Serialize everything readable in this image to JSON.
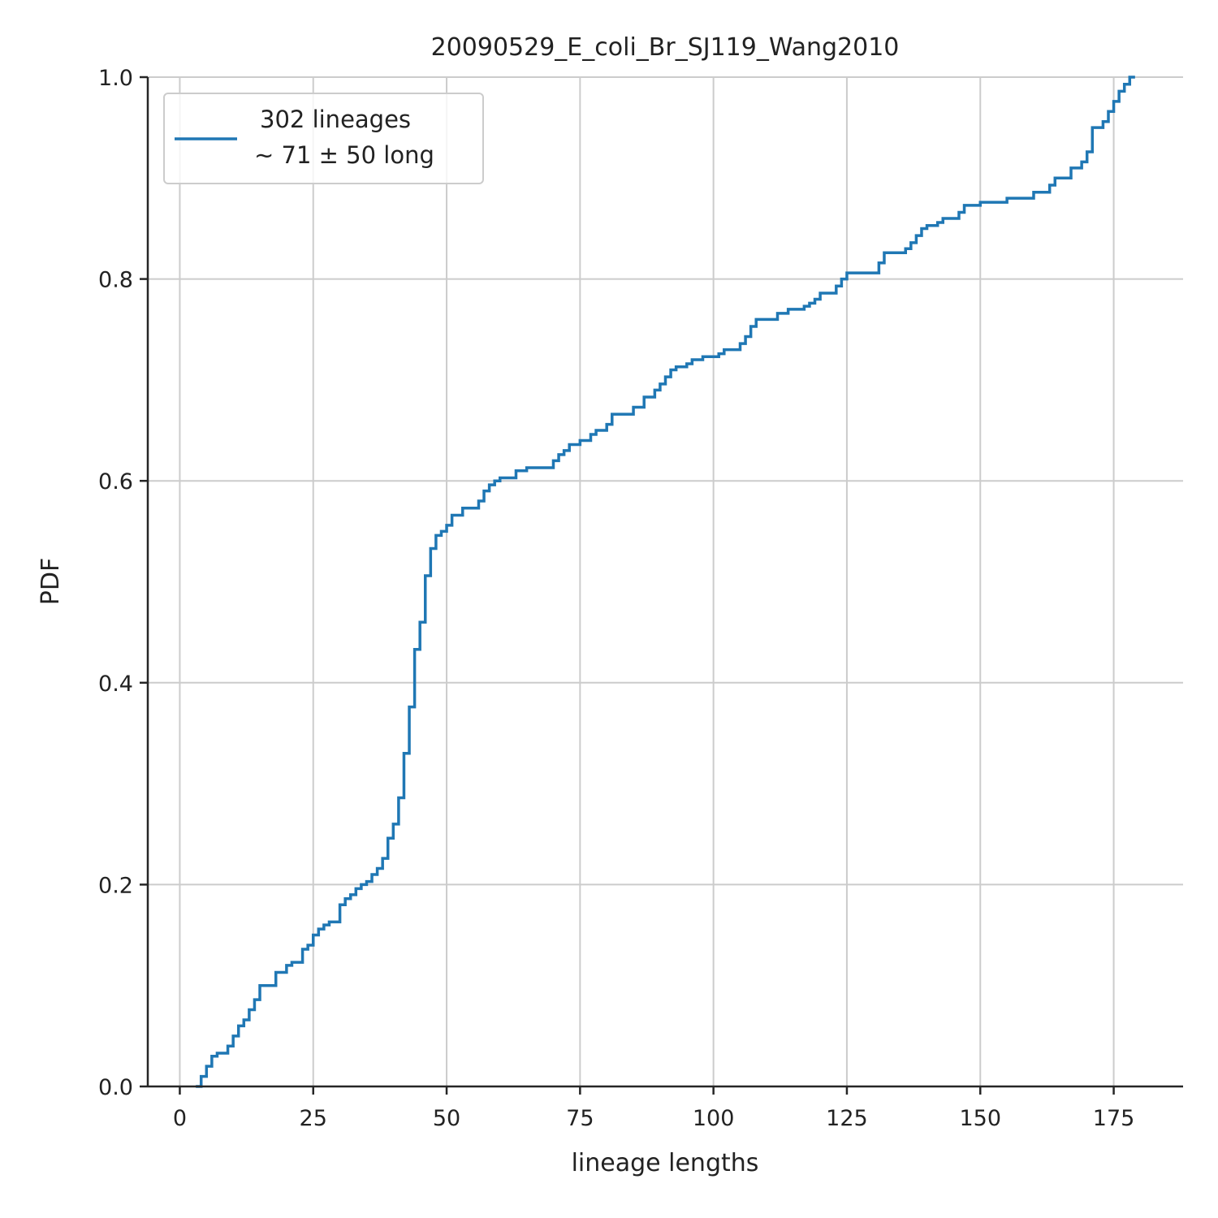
{
  "chart_data": {
    "type": "line",
    "step": true,
    "title": "20090529_E_coli_Br_SJ119_Wang2010",
    "xlabel": "lineage lengths",
    "ylabel": "PDF",
    "xlim": [
      -6,
      188
    ],
    "ylim": [
      0,
      1
    ],
    "grid": true,
    "legend_placement": "top-left",
    "x_ticks": [
      0,
      25,
      50,
      75,
      100,
      125,
      150,
      175
    ],
    "y_ticks": [
      0.0,
      0.2,
      0.4,
      0.6,
      0.8,
      1.0
    ],
    "x_tick_labels": [
      "0",
      "25",
      "50",
      "75",
      "100",
      "125",
      "150",
      "175"
    ],
    "y_tick_labels": [
      "0.0",
      "0.2",
      "0.4",
      "0.6",
      "0.8",
      "1.0"
    ],
    "legend_lines": [
      "302 lineages",
      "∼ 71 ± 50 long"
    ],
    "series": [
      {
        "color": "#1f77b4",
        "points": [
          [
            3,
            0.0
          ],
          [
            4,
            0.01
          ],
          [
            5,
            0.02
          ],
          [
            6,
            0.03
          ],
          [
            7,
            0.033
          ],
          [
            9,
            0.04
          ],
          [
            10,
            0.05
          ],
          [
            11,
            0.06
          ],
          [
            12,
            0.066
          ],
          [
            13,
            0.076
          ],
          [
            14,
            0.086
          ],
          [
            15,
            0.1
          ],
          [
            18,
            0.113
          ],
          [
            20,
            0.12
          ],
          [
            21,
            0.123
          ],
          [
            23,
            0.136
          ],
          [
            24,
            0.14
          ],
          [
            25,
            0.15
          ],
          [
            26,
            0.156
          ],
          [
            27,
            0.16
          ],
          [
            28,
            0.163
          ],
          [
            30,
            0.18
          ],
          [
            31,
            0.186
          ],
          [
            32,
            0.19
          ],
          [
            33,
            0.196
          ],
          [
            34,
            0.2
          ],
          [
            35,
            0.203
          ],
          [
            36,
            0.21
          ],
          [
            37,
            0.216
          ],
          [
            38,
            0.226
          ],
          [
            39,
            0.246
          ],
          [
            40,
            0.26
          ],
          [
            41,
            0.286
          ],
          [
            42,
            0.33
          ],
          [
            43,
            0.376
          ],
          [
            44,
            0.433
          ],
          [
            45,
            0.46
          ],
          [
            46,
            0.506
          ],
          [
            47,
            0.533
          ],
          [
            48,
            0.546
          ],
          [
            49,
            0.55
          ],
          [
            50,
            0.556
          ],
          [
            51,
            0.566
          ],
          [
            53,
            0.573
          ],
          [
            56,
            0.58
          ],
          [
            57,
            0.59
          ],
          [
            58,
            0.596
          ],
          [
            59,
            0.6
          ],
          [
            60,
            0.603
          ],
          [
            63,
            0.61
          ],
          [
            65,
            0.613
          ],
          [
            70,
            0.62
          ],
          [
            71,
            0.626
          ],
          [
            72,
            0.63
          ],
          [
            73,
            0.636
          ],
          [
            75,
            0.64
          ],
          [
            77,
            0.646
          ],
          [
            78,
            0.65
          ],
          [
            80,
            0.656
          ],
          [
            81,
            0.666
          ],
          [
            85,
            0.673
          ],
          [
            87,
            0.683
          ],
          [
            89,
            0.69
          ],
          [
            90,
            0.696
          ],
          [
            91,
            0.703
          ],
          [
            92,
            0.71
          ],
          [
            93,
            0.713
          ],
          [
            95,
            0.716
          ],
          [
            96,
            0.72
          ],
          [
            98,
            0.723
          ],
          [
            101,
            0.726
          ],
          [
            102,
            0.73
          ],
          [
            105,
            0.736
          ],
          [
            106,
            0.743
          ],
          [
            107,
            0.753
          ],
          [
            108,
            0.76
          ],
          [
            112,
            0.766
          ],
          [
            114,
            0.77
          ],
          [
            117,
            0.773
          ],
          [
            118,
            0.776
          ],
          [
            119,
            0.78
          ],
          [
            120,
            0.786
          ],
          [
            123,
            0.793
          ],
          [
            124,
            0.8
          ],
          [
            125,
            0.806
          ],
          [
            131,
            0.816
          ],
          [
            132,
            0.826
          ],
          [
            136,
            0.83
          ],
          [
            137,
            0.836
          ],
          [
            138,
            0.843
          ],
          [
            139,
            0.85
          ],
          [
            140,
            0.853
          ],
          [
            142,
            0.856
          ],
          [
            143,
            0.86
          ],
          [
            146,
            0.866
          ],
          [
            147,
            0.873
          ],
          [
            150,
            0.876
          ],
          [
            155,
            0.88
          ],
          [
            160,
            0.886
          ],
          [
            163,
            0.893
          ],
          [
            164,
            0.9
          ],
          [
            167,
            0.91
          ],
          [
            169,
            0.916
          ],
          [
            170,
            0.926
          ],
          [
            171,
            0.95
          ],
          [
            173,
            0.956
          ],
          [
            174,
            0.966
          ],
          [
            175,
            0.976
          ],
          [
            176,
            0.986
          ],
          [
            177,
            0.993
          ],
          [
            178,
            1.0
          ],
          [
            179,
            1.0
          ]
        ]
      }
    ]
  }
}
